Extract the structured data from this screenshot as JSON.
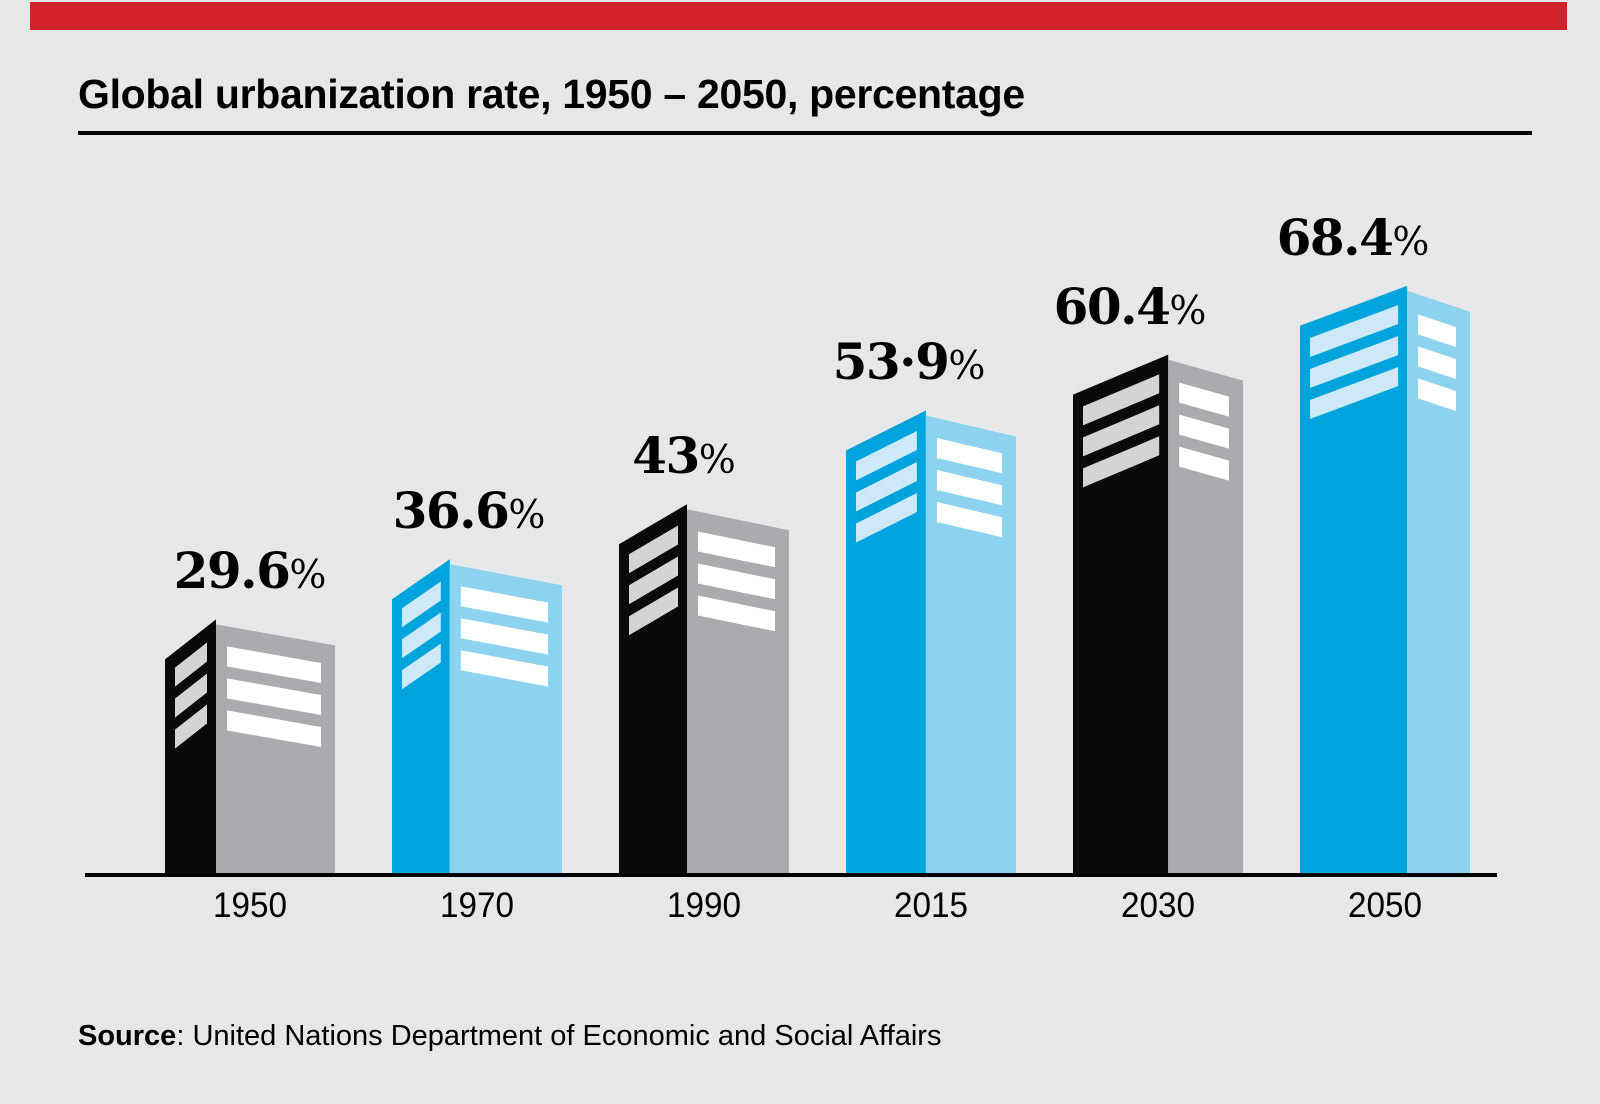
{
  "page": {
    "background_color": "#E6E7E8",
    "accent_bar_color": "#D2232A"
  },
  "header": {
    "title": "Global urbanization rate, 1950 – 2050, percentage"
  },
  "source": {
    "label": "Source",
    "rest": ": United Nations Department of Economic and Social Affairs"
  },
  "chart_data": {
    "type": "bar",
    "subtype": "pictogram-buildings",
    "title": "Global urbanization rate, 1950 – 2050, percentage",
    "unit": "percentage",
    "categories": [
      "1950",
      "1970",
      "1990",
      "2015",
      "2030",
      "2050"
    ],
    "values": [
      29.6,
      36.6,
      43,
      53.9,
      60.4,
      68.4
    ],
    "value_labels": [
      "29.6%",
      "36.6%",
      "43%",
      "53·9%",
      "60.4%",
      "68.4%"
    ],
    "bar_color_pattern": [
      "black",
      "blue",
      "black",
      "blue",
      "black",
      "blue"
    ],
    "x_axis": {
      "baseline_visible": true,
      "tick_labels": [
        "1950",
        "1970",
        "1990",
        "2015",
        "2030",
        "2050"
      ]
    },
    "y_axis": {
      "visible": false
    },
    "gridlines": false,
    "legend": false,
    "colors": {
      "black_building_front": "#0A0A0B",
      "black_building_side": "#A9ABAE",
      "black_building_windows": "#D2D4D5",
      "blue_building_front": "#00A4DD",
      "blue_building_side": "#8DD3F0",
      "blue_building_windows": "#CDE9F8",
      "side_face_windows": "#FFFFFF",
      "axis_line": "#000000",
      "label_text": "#000000"
    },
    "source_note": "Source: United Nations Department of Economic and Social Affairs"
  }
}
